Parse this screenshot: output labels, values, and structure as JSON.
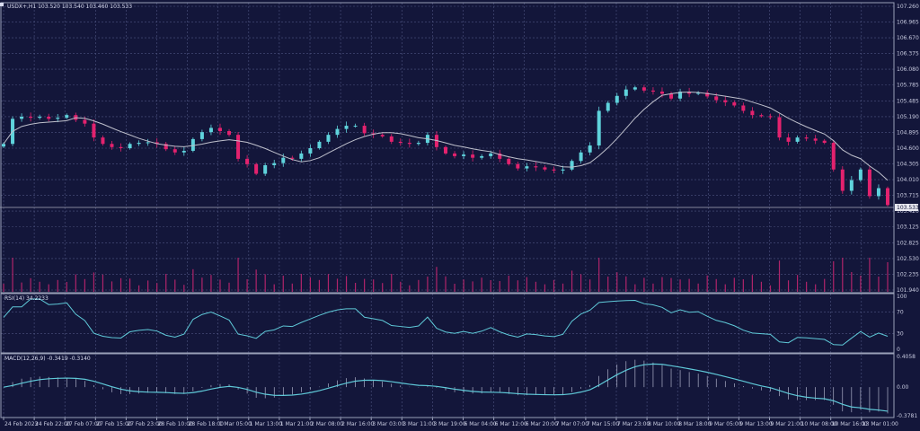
{
  "header": {
    "symbol_info": "USDX+,H1  103.520 103.540 103.460 103.533"
  },
  "colors": {
    "background": "#13163a",
    "grid": "#4e5480",
    "bull": "#5fd3dc",
    "bear": "#e3226e",
    "ma": "#bfc0cc",
    "volume": "#b0246a",
    "indicator": "#5fc9d8",
    "axis_text": "#c8cbe0"
  },
  "chart_data": [
    {
      "type": "candlestick",
      "title": "USDX+,H1",
      "current_price": "103.533",
      "ylim": [
        101.94,
        107.26
      ],
      "y_ticks": [
        "107.260",
        "106.965",
        "106.670",
        "106.375",
        "106.080",
        "105.785",
        "105.485",
        "105.190",
        "104.895",
        "104.600",
        "104.305",
        "104.010",
        "103.715",
        "103.420",
        "103.125",
        "102.825",
        "102.530",
        "102.235",
        "101.940"
      ],
      "x_ticks": [
        "24 Feb 2023",
        "24 Feb 22:00",
        "27 Feb 07:00",
        "27 Feb 15:00",
        "27 Feb 23:00",
        "28 Feb 10:00",
        "28 Feb 18:00",
        "1 Mar 05:00",
        "1 Mar 13:00",
        "1 Mar 21:00",
        "2 Mar 08:00",
        "2 Mar 16:00",
        "3 Mar 03:00",
        "3 Mar 11:00",
        "3 Mar 19:00",
        "6 Mar 04:00",
        "6 Mar 12:00",
        "6 Mar 20:00",
        "7 Mar 07:00",
        "7 Mar 15:00",
        "7 Mar 23:00",
        "8 Mar 10:00",
        "8 Mar 18:00",
        "9 Mar 05:00",
        "9 Mar 13:00",
        "9 Mar 21:00",
        "10 Mar 08:00",
        "10 Mar 16:00",
        "13 Mar 01:00"
      ],
      "closes": [
        104.68,
        105.15,
        105.19,
        105.17,
        105.19,
        105.15,
        105.17,
        105.22,
        105.13,
        105.06,
        104.8,
        104.68,
        104.62,
        104.6,
        104.68,
        104.7,
        104.71,
        104.68,
        104.58,
        104.52,
        104.55,
        104.77,
        104.9,
        104.98,
        104.92,
        104.85,
        104.4,
        104.3,
        104.12,
        104.28,
        104.32,
        104.42,
        104.4,
        104.5,
        104.6,
        104.72,
        104.85,
        104.96,
        105.02,
        105.02,
        104.88,
        104.85,
        104.82,
        104.72,
        104.7,
        104.68,
        104.7,
        104.85,
        104.62,
        104.5,
        104.45,
        104.48,
        104.42,
        104.45,
        104.5,
        104.4,
        104.3,
        104.22,
        104.26,
        104.24,
        104.2,
        104.18,
        104.2,
        104.36,
        104.52,
        104.65,
        105.3,
        105.45,
        105.58,
        105.7,
        105.74,
        105.68,
        105.66,
        105.62,
        105.53,
        105.66,
        105.62,
        105.64,
        105.57,
        105.5,
        105.46,
        105.4,
        105.3,
        105.22,
        105.2,
        105.18,
        104.8,
        104.72,
        104.8,
        104.78,
        104.74,
        104.7,
        104.2,
        103.8,
        104.0,
        104.2,
        103.7,
        103.85,
        103.533
      ],
      "grid": true
    },
    {
      "type": "line",
      "title": "RSI(14) 34.2233",
      "ylim": [
        0,
        100
      ],
      "y_ticks": [
        "100",
        "70",
        "30",
        "0"
      ]
    },
    {
      "type": "bar+line",
      "title": "MACD(12,26,9) -0.3419 -0.3140",
      "ylim": [
        -0.3781,
        0.4058
      ],
      "y_ticks": [
        "0.4058",
        "0.00",
        "-0.3781"
      ]
    }
  ]
}
